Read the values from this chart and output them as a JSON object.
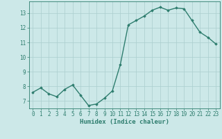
{
  "x": [
    0,
    1,
    2,
    3,
    4,
    5,
    6,
    7,
    8,
    9,
    10,
    11,
    12,
    13,
    14,
    15,
    16,
    17,
    18,
    19,
    20,
    21,
    22,
    23
  ],
  "y": [
    7.6,
    7.9,
    7.5,
    7.3,
    7.8,
    8.1,
    7.4,
    6.7,
    6.8,
    7.2,
    7.7,
    9.5,
    12.2,
    12.5,
    12.8,
    13.2,
    13.4,
    13.2,
    13.35,
    13.3,
    12.5,
    11.7,
    11.35,
    10.9
  ],
  "xlabel": "Humidex (Indice chaleur)",
  "xlim": [
    -0.5,
    23.5
  ],
  "ylim": [
    6.5,
    13.8
  ],
  "yticks": [
    7,
    8,
    9,
    10,
    11,
    12,
    13
  ],
  "xticks": [
    0,
    1,
    2,
    3,
    4,
    5,
    6,
    7,
    8,
    9,
    10,
    11,
    12,
    13,
    14,
    15,
    16,
    17,
    18,
    19,
    20,
    21,
    22,
    23
  ],
  "line_color": "#2e7d6e",
  "marker": "D",
  "marker_size": 1.8,
  "bg_color": "#cce8e8",
  "grid_color": "#aacece",
  "spine_color": "#2e7d6e",
  "label_color": "#2e7d6e",
  "xlabel_fontsize": 6.5,
  "tick_fontsize": 5.5,
  "linewidth": 1.0
}
